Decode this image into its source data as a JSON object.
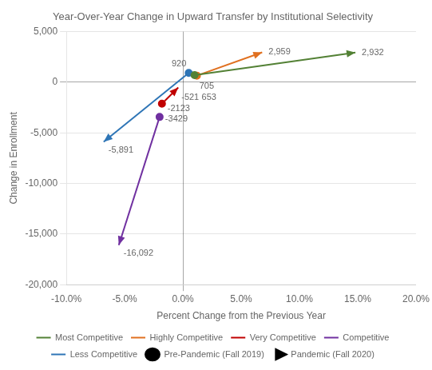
{
  "chart_data": {
    "type": "arrow",
    "title": "Year-Over-Year Change in Upward Transfer by Institutional Selectivity",
    "x_label": "Percent Change from the Previous Year",
    "y_label": "Change in Enrollment",
    "xlim": [
      -0.1,
      0.2
    ],
    "ylim": [
      -20000,
      5000
    ],
    "xticks": [
      {
        "value": -0.1,
        "label": "-10.0%"
      },
      {
        "value": -0.05,
        "label": "-5.0%"
      },
      {
        "value": 0.0,
        "label": "0.0%"
      },
      {
        "value": 0.05,
        "label": "5.0%"
      },
      {
        "value": 0.1,
        "label": "10.0%"
      },
      {
        "value": 0.15,
        "label": "15.0%"
      },
      {
        "value": 0.2,
        "label": "20.0%"
      }
    ],
    "yticks": [
      {
        "value": 5000,
        "label": "5,000"
      },
      0,
      {
        "value": -5000,
        "label": "-5,000"
      },
      {
        "value": -10000,
        "label": "-10,000"
      },
      {
        "value": -15000,
        "label": "-15,000"
      },
      {
        "value": -20000,
        "label": "-20,000"
      }
    ],
    "grid": "y",
    "legend": "bottom",
    "data_labels": true,
    "series": [
      {
        "name": "Most Competitive",
        "color": "#538135",
        "marker": "arrow",
        "x": [
          0.01,
          0.148
        ],
        "values": [
          705,
          2932
        ],
        "value_labels": [
          "705",
          "2,932"
        ]
      },
      {
        "name": "Highly Competitive",
        "color": "#E07020",
        "marker": "arrow",
        "x": [
          0.012,
          0.068
        ],
        "values": [
          653,
          2959
        ],
        "value_labels": [
          "653",
          "2,959"
        ]
      },
      {
        "name": "Very Competitive",
        "color": "#C00000",
        "marker": "arrow",
        "x": [
          -0.018,
          -0.004
        ],
        "values": [
          -2123,
          -521
        ],
        "value_labels": [
          "-2123",
          "-521"
        ]
      },
      {
        "name": "Competitive",
        "color": "#7030A0",
        "marker": "arrow",
        "x": [
          -0.02,
          -0.055
        ],
        "values": [
          -3429,
          -16092
        ],
        "value_labels": [
          "-3429",
          "-16,092"
        ]
      },
      {
        "name": "Less Competitive",
        "color": "#2E75B6",
        "marker": "arrow",
        "x": [
          0.005,
          -0.068
        ],
        "values": [
          920,
          -5891
        ],
        "value_labels": [
          "920",
          "-5,891"
        ]
      },
      {
        "name": "Pre-Pandemic (Fall 2019)",
        "color": "#000000",
        "marker": "circle",
        "x": [],
        "values": []
      },
      {
        "name": "Pandemic (Fall 2020)",
        "color": "#000000",
        "marker": "triangle",
        "x": [],
        "values": []
      }
    ]
  }
}
